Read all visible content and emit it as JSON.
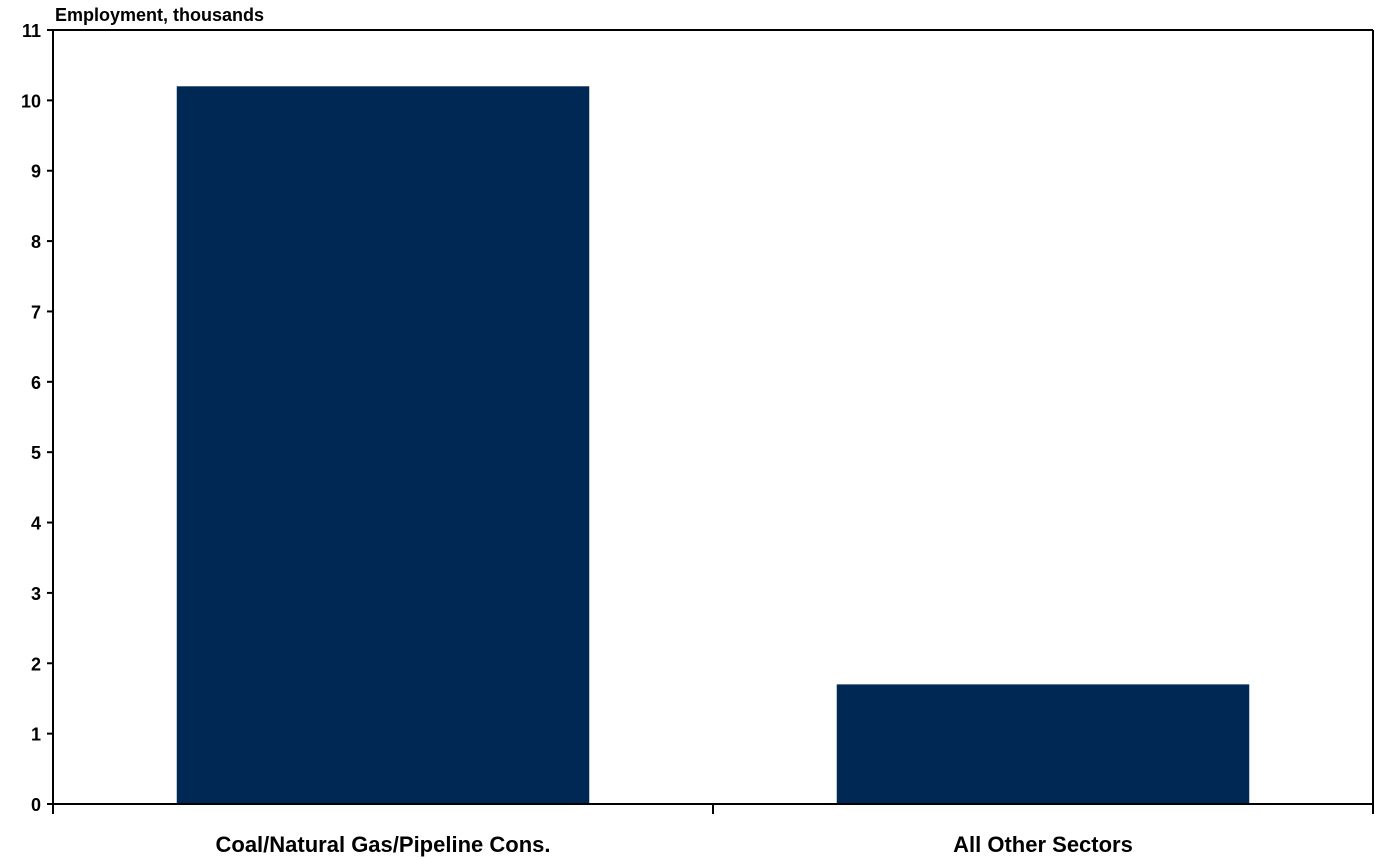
{
  "chart_data": {
    "type": "bar",
    "title": "",
    "xlabel": "",
    "ylabel": "Employment, thousands",
    "categories": [
      "Coal/Natural Gas/Pipeline Cons.",
      "All Other Sectors"
    ],
    "values": [
      10.2,
      1.7
    ],
    "ylim": [
      0,
      11
    ],
    "yticks": [
      0,
      1,
      2,
      3,
      4,
      5,
      6,
      7,
      8,
      9,
      10,
      11
    ],
    "grid": false,
    "legend": "none",
    "bar_color": "#002855"
  }
}
